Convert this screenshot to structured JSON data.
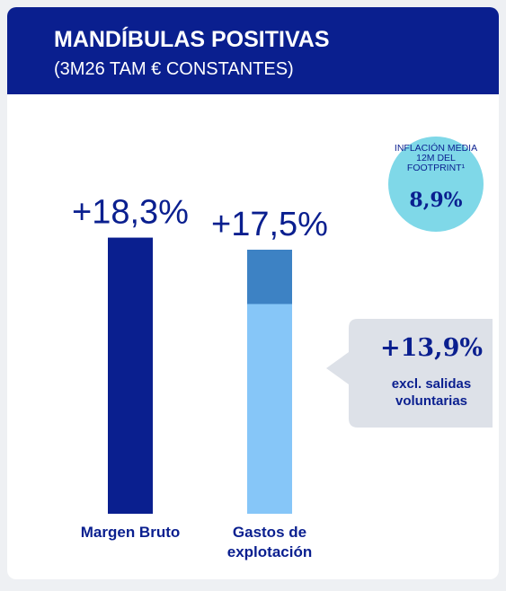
{
  "chart_data": {
    "type": "bar",
    "title": "MANDÍBULAS POSITIVAS",
    "subtitle": "(3M26 TAM € CONSTANTES)",
    "categories": [
      "Margen Bruto",
      "Gastos de explotación"
    ],
    "values": [
      18.3,
      17.5
    ],
    "value_labels": [
      "+18,3%",
      "+17,5%"
    ],
    "colors": [
      "#0a1f8f",
      "#3d82c4"
    ],
    "excl": {
      "value": 13.9,
      "value_label": "+13,9%",
      "text": "excl. salidas voluntarias",
      "color": "#86c6f8",
      "bar": 1
    },
    "badge": {
      "text": "INFLACIÓN MEDIA 12M DEL FOOTPRINT¹",
      "label": "8,9%"
    }
  }
}
